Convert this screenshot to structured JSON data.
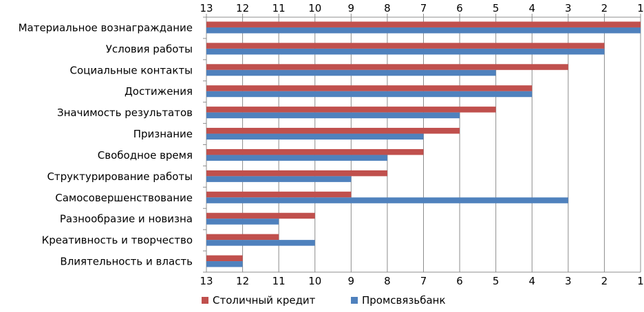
{
  "chart_data": {
    "type": "bar",
    "orientation": "horizontal",
    "x_axis_position": "top",
    "x_reversed": true,
    "xlim": [
      1,
      13
    ],
    "x_ticks": [
      "13",
      "12",
      "11",
      "10",
      "9",
      "8",
      "7",
      "6",
      "5",
      "4",
      "3",
      "2",
      "1"
    ],
    "grid": true,
    "legend_position": "bottom",
    "categories": [
      "Материальное вознаграждание",
      "Условия работы",
      "Социальные контакты",
      "Достижения",
      "Значимость результатов",
      "Признание",
      "Свободное время",
      "Структурирование работы",
      "Самосовершенствование",
      "Разнообразие и новизна",
      "Креативность и творчество",
      "Влиятельность и власть"
    ],
    "series": [
      {
        "name": "Столичный кредит",
        "color": "#C0504D",
        "values": [
          1,
          2,
          3,
          4,
          5,
          6,
          7,
          8,
          9,
          10,
          11,
          12
        ]
      },
      {
        "name": "Промсвязьбанк",
        "color": "#4F81BD",
        "values": [
          1,
          2,
          5,
          4,
          6,
          7,
          8,
          9,
          3,
          11,
          10,
          12
        ]
      }
    ]
  }
}
